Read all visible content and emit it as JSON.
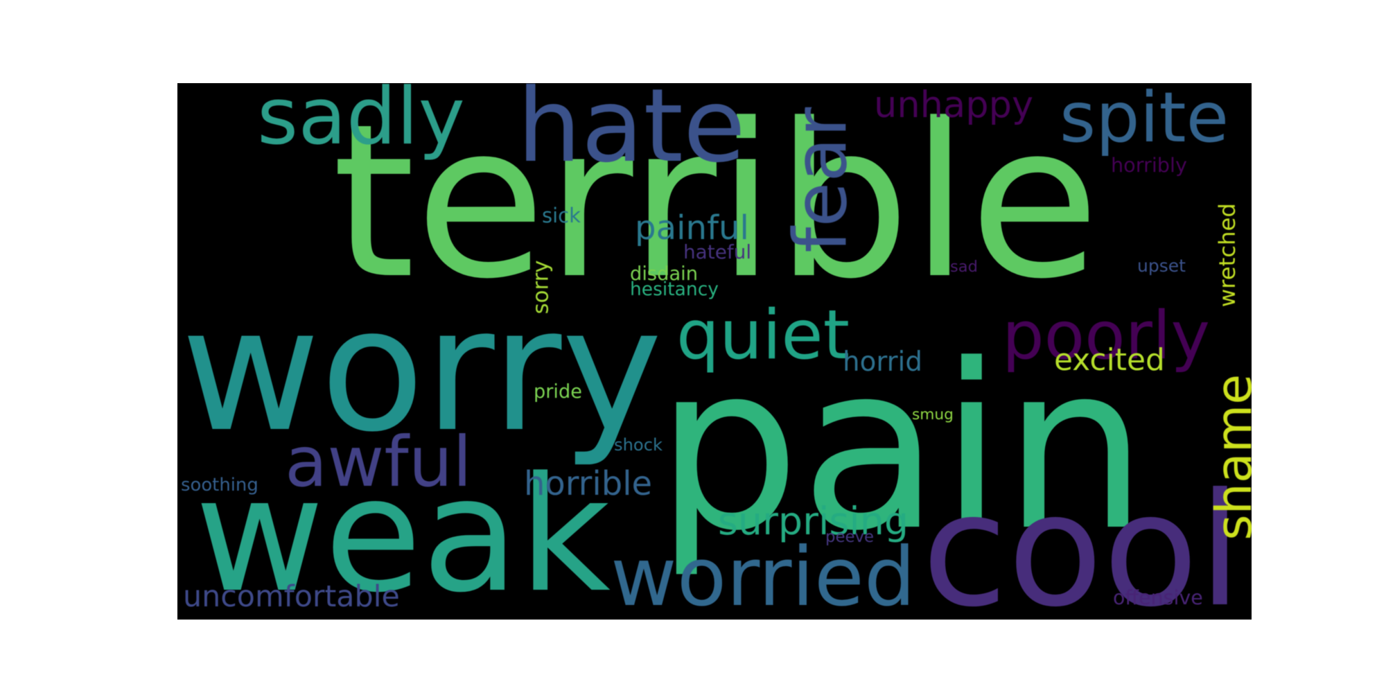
{
  "background": "#000000",
  "words": [
    {
      "text": "terrible",
      "color": "#5ec962"
    },
    {
      "text": "pain",
      "color": "#2fb47c"
    },
    {
      "text": "worry",
      "color": "#21918c"
    },
    {
      "text": "weak",
      "color": "#26a387"
    },
    {
      "text": "cool",
      "color": "#472d7b"
    },
    {
      "text": "hate",
      "color": "#3b528b"
    },
    {
      "text": "sadly",
      "color": "#2c9e8a"
    },
    {
      "text": "spite",
      "color": "#33638d"
    },
    {
      "text": "unhappy",
      "color": "#440154"
    },
    {
      "text": "fear",
      "color": "#3b528b"
    },
    {
      "text": "quiet",
      "color": "#20a486"
    },
    {
      "text": "poorly",
      "color": "#440154"
    },
    {
      "text": "awful",
      "color": "#424186"
    },
    {
      "text": "worried",
      "color": "#31688e"
    },
    {
      "text": "shame",
      "color": "#cde11d"
    },
    {
      "text": "painful",
      "color": "#2a788e"
    },
    {
      "text": "excited",
      "color": "#b5de2b"
    },
    {
      "text": "horrid",
      "color": "#2d708e"
    },
    {
      "text": "horrible",
      "color": "#33638d"
    },
    {
      "text": "surprising",
      "color": "#25ab82"
    },
    {
      "text": "uncomfortable",
      "color": "#3e4989"
    },
    {
      "text": "wretched",
      "color": "#c2df23"
    },
    {
      "text": "horribly",
      "color": "#440154"
    },
    {
      "text": "sick",
      "color": "#2a788e"
    },
    {
      "text": "hateful",
      "color": "#46327e"
    },
    {
      "text": "disdain",
      "color": "#7ad151"
    },
    {
      "text": "hesitancy",
      "color": "#29af7f"
    },
    {
      "text": "sorry",
      "color": "#a5db36"
    },
    {
      "text": "upset",
      "color": "#3b528b"
    },
    {
      "text": "sad",
      "color": "#481a6c"
    },
    {
      "text": "pride",
      "color": "#7ad151"
    },
    {
      "text": "smug",
      "color": "#8fd744"
    },
    {
      "text": "shock",
      "color": "#2c728e"
    },
    {
      "text": "soothing",
      "color": "#355f8d"
    },
    {
      "text": "peeve",
      "color": "#453781"
    },
    {
      "text": "offensive",
      "color": "#482475"
    }
  ]
}
